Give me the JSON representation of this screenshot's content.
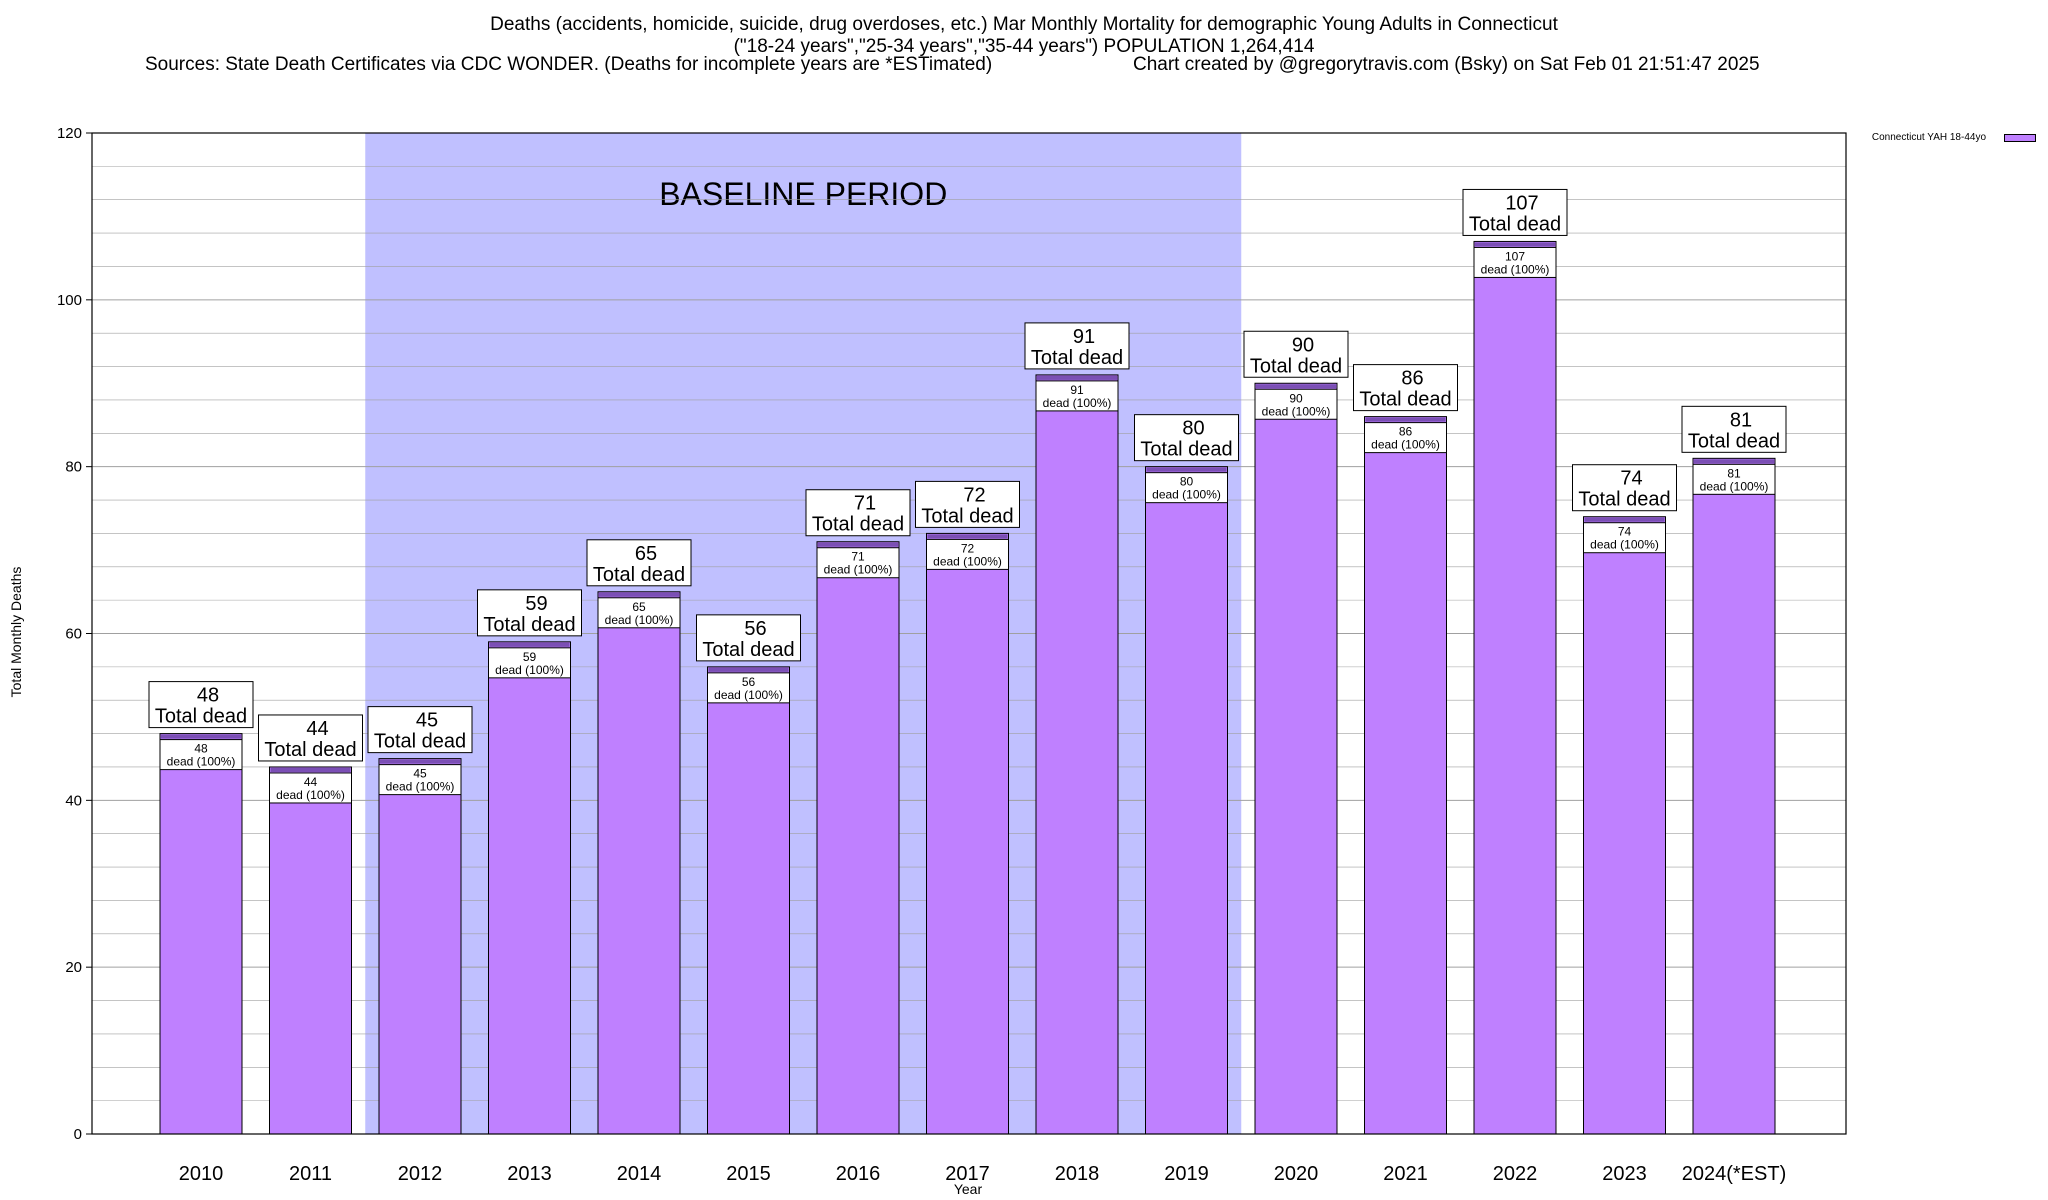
{
  "header": {
    "title_line1": "Deaths (accidents, homicide, suicide, drug overdoses, etc.) Mar Monthly Mortality for demographic Young Adults in Connecticut",
    "title_line2": "(\"18-24 years\",\"25-34 years\",\"35-44 years\") POPULATION 1,264,414",
    "sources": "Sources: State Death Certificates via CDC WONDER. (Deaths for incomplete years are *ESTimated)",
    "credit": "Chart created by @gregorytravis.com (Bsky) on Sat Feb 01 21:51:47 2025"
  },
  "chart_data": {
    "type": "bar",
    "xlabel": "Year",
    "ylabel": "Total Monthly Deaths",
    "ylim": [
      0,
      120
    ],
    "y_ticks": [
      0,
      20,
      40,
      60,
      80,
      100,
      120
    ],
    "y_minor_step": 4,
    "grid": true,
    "categories": [
      "2010",
      "2011",
      "2012",
      "2013",
      "2014",
      "2015",
      "2016",
      "2017",
      "2018",
      "2019",
      "2020",
      "2021",
      "2022",
      "2023",
      "2024(*EST)"
    ],
    "series": [
      {
        "name": "Connecticut YAH 18-44yo",
        "values": [
          48,
          44,
          45,
          59,
          65,
          56,
          71,
          72,
          91,
          80,
          90,
          86,
          107,
          74,
          81
        ]
      }
    ],
    "total_label": "Total dead",
    "bar_label_suffix": "dead (100%)",
    "baseline": {
      "label": "BASELINE PERIOD",
      "start": "2012",
      "end": "2019"
    },
    "legend_position": "top-right",
    "colors": {
      "bar": "#bf80ff",
      "bar_stroke": "#000000",
      "bar_cap": "#7b4fb5",
      "baseline_fill": "#c0c0ff",
      "grid": "#a0a0a0"
    }
  }
}
